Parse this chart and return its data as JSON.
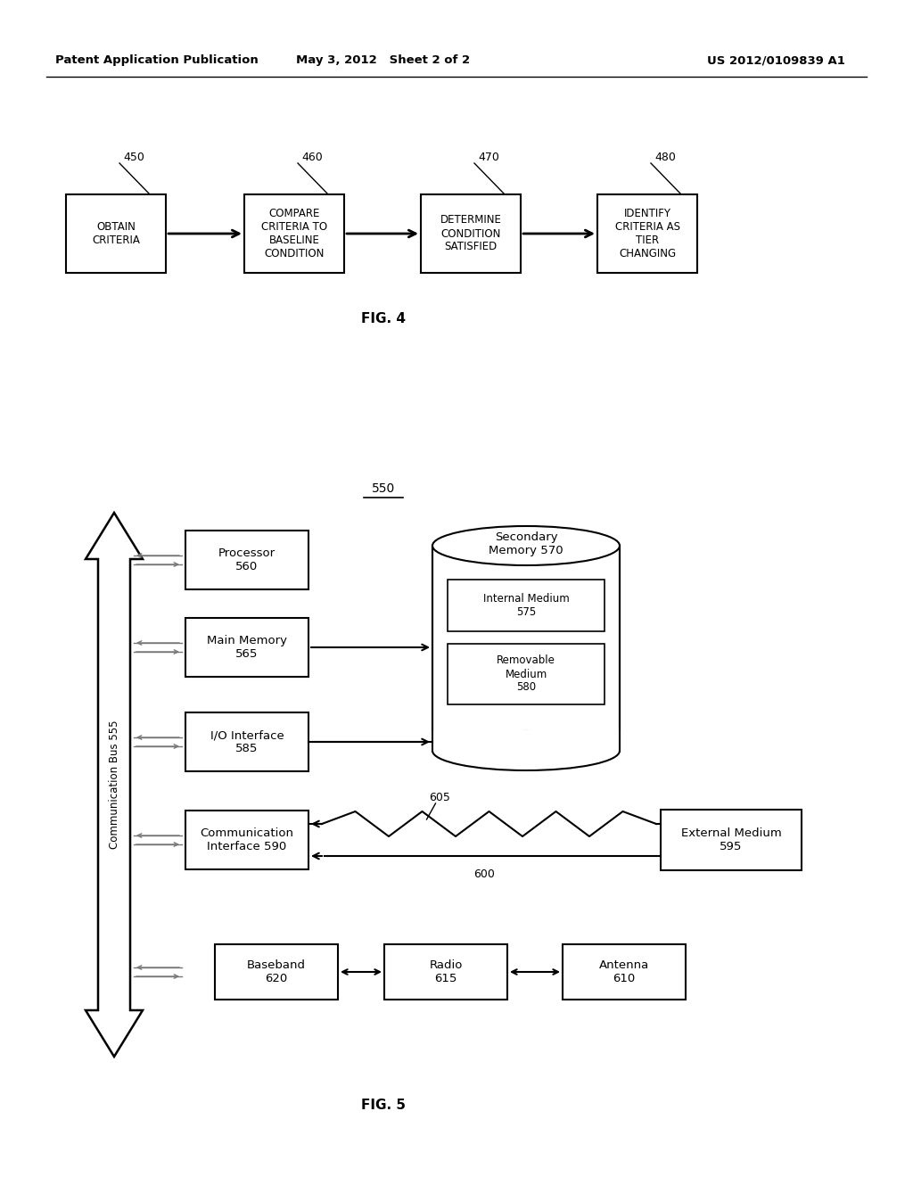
{
  "header_left": "Patent Application Publication",
  "header_mid": "May 3, 2012   Sheet 2 of 2",
  "header_right": "US 2012/0109839 A1",
  "fig4_label": "FIG. 4",
  "fig5_label": "FIG. 5",
  "background_color": "#ffffff"
}
